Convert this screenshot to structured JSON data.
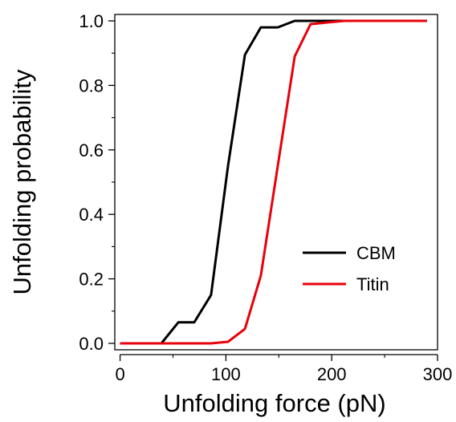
{
  "chart_data": {
    "type": "line",
    "title": "",
    "xlabel": "Unfolding force (pN)",
    "ylabel": "Unfolding probability",
    "xlim": [
      -5,
      300
    ],
    "ylim": [
      -0.02,
      1.02
    ],
    "xticks": [
      0,
      100,
      200,
      300
    ],
    "xtick_labels": [
      "0",
      "100",
      "200",
      "300"
    ],
    "yticks": [
      0.0,
      0.2,
      0.4,
      0.6,
      0.8,
      1.0
    ],
    "ytick_labels": [
      "0.0",
      "0.2",
      "0.4",
      "0.6",
      "0.8",
      "1.0"
    ],
    "grid": false,
    "legend_position": "bottom-right",
    "series": [
      {
        "name": "CBM",
        "color": "#000000",
        "x": [
          0,
          39,
          55,
          70,
          86,
          102,
          118,
          133,
          149,
          165,
          180,
          196,
          212,
          227,
          243,
          259,
          275,
          290
        ],
        "y": [
          0.0,
          0.0,
          0.065,
          0.065,
          0.15,
          0.55,
          0.895,
          0.98,
          0.98,
          1.0,
          1.0,
          1.0,
          1.0,
          1.0,
          1.0,
          1.0,
          1.0,
          1.0
        ]
      },
      {
        "name": "Titin",
        "color": "#e8000b",
        "x": [
          0,
          39,
          55,
          70,
          86,
          102,
          118,
          133,
          149,
          165,
          180,
          196,
          212,
          227,
          243,
          259,
          275,
          290
        ],
        "y": [
          0.0,
          0.0,
          0.0,
          0.0,
          0.0,
          0.005,
          0.045,
          0.21,
          0.55,
          0.89,
          0.99,
          0.995,
          1.0,
          1.0,
          1.0,
          1.0,
          1.0,
          1.0
        ]
      }
    ]
  }
}
